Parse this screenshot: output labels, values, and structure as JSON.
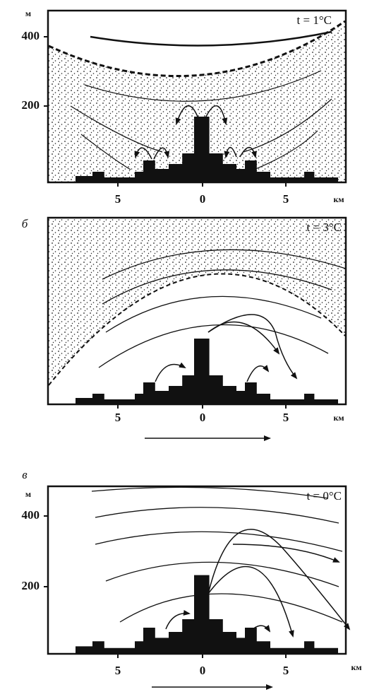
{
  "panels": [
    {
      "y_unit": "м",
      "y_labels": [
        "400",
        "200"
      ],
      "x_labels": [
        "5",
        "0",
        "5"
      ],
      "x_unit": "км",
      "temperature": "t = 1°C"
    },
    {
      "label": "б",
      "x_labels": [
        "5",
        "0",
        "5"
      ],
      "x_unit": "км",
      "temperature": "t = 3°C"
    },
    {
      "label": "в",
      "y_unit": "м",
      "y_labels": [
        "400",
        "200"
      ],
      "x_labels": [
        "5",
        "0",
        "5"
      ],
      "x_unit": "км",
      "temperature": "t = 0°C"
    }
  ]
}
